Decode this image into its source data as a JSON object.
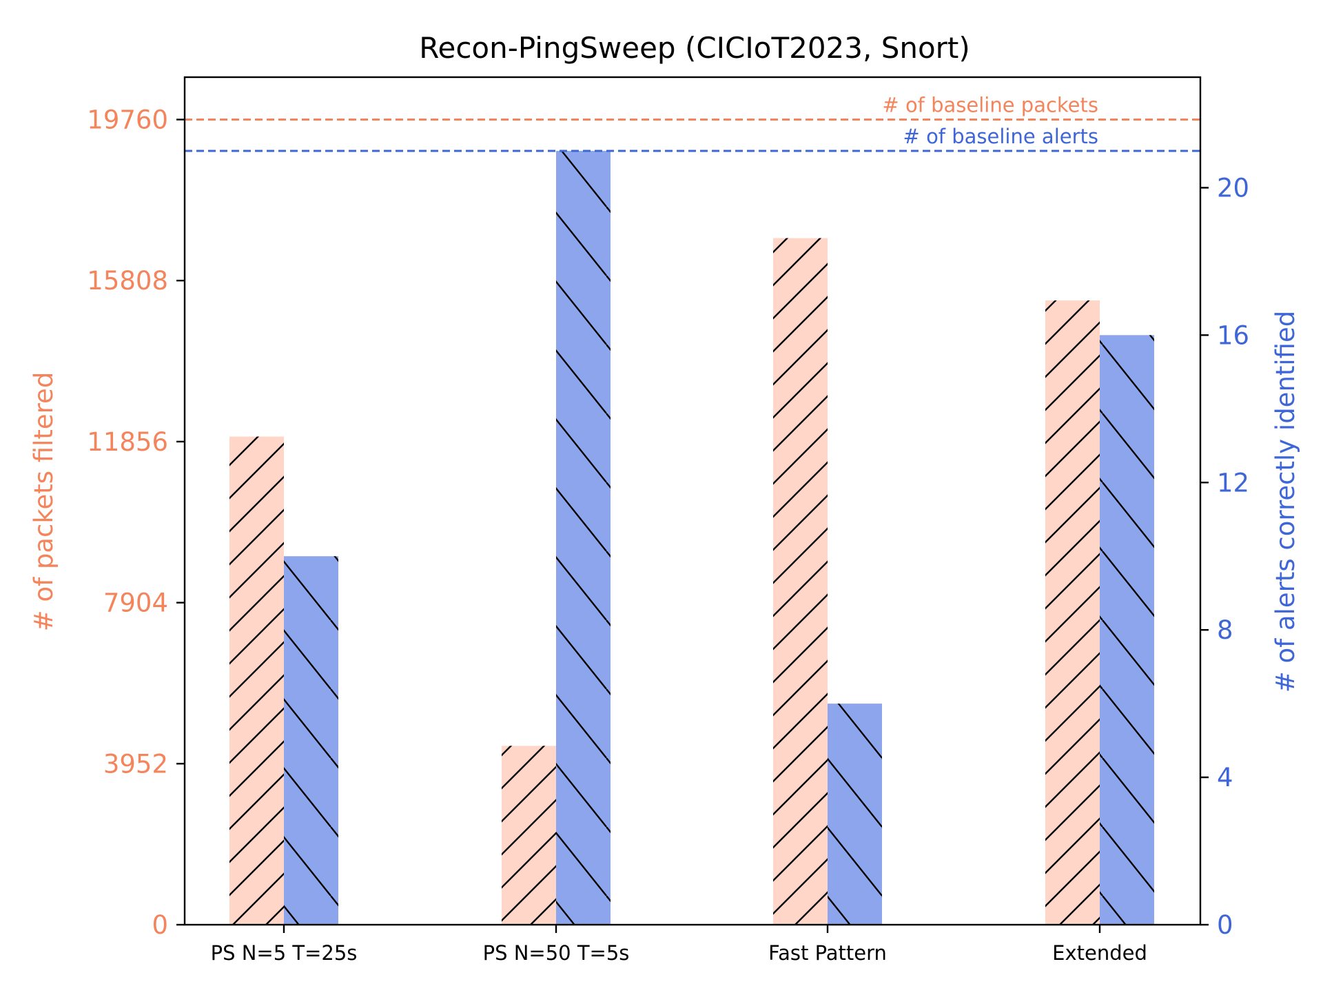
{
  "chart_data": {
    "type": "bar",
    "title": "Recon-PingSweep (CICIoT2023, Snort)",
    "categories": [
      "PS N=5 T=25s",
      "PS N=50 T=5s",
      "Fast Pattern",
      "Extended"
    ],
    "y_left": {
      "label": "# of packets filtered",
      "ticks": [
        0,
        3952,
        7904,
        11856,
        15808,
        19760
      ],
      "range": [
        0,
        20800
      ],
      "color": "#f4845c"
    },
    "y_right": {
      "label": "# of alerts correctly identified",
      "ticks": [
        0,
        4,
        8,
        12,
        16,
        20
      ],
      "range": [
        0,
        23
      ],
      "color": "#3f66d6"
    },
    "series": [
      {
        "name": "# of packets filtered",
        "axis": "left",
        "values": [
          11980,
          4390,
          16850,
          15320
        ],
        "fill": "#ffd6c7",
        "hatch": "forward"
      },
      {
        "name": "# of alerts correctly identified",
        "axis": "right",
        "values": [
          10,
          21,
          6,
          16
        ],
        "fill": "#8da5ec",
        "hatch": "back"
      }
    ],
    "reference_lines": [
      {
        "label": "# of baseline packets",
        "axis": "left",
        "value": 19760,
        "color": "#f4845c"
      },
      {
        "label": "# of baseline alerts",
        "axis": "right",
        "value": 21,
        "color": "#3f66d6"
      }
    ],
    "grid": false
  }
}
